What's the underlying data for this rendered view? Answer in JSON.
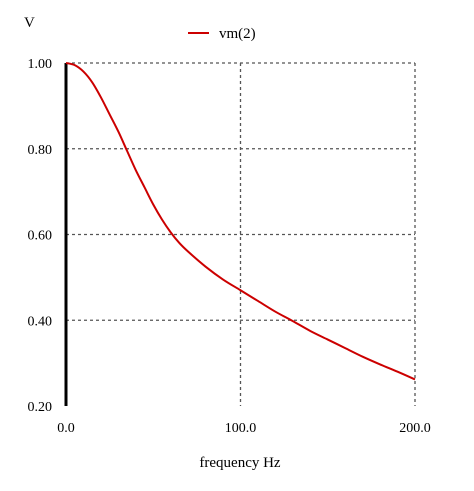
{
  "chart_data": {
    "type": "line",
    "ylabel": "V",
    "xlabel": "frequency Hz",
    "xlim": [
      0,
      200
    ],
    "ylim": [
      0.2,
      1.0
    ],
    "x_ticks": [
      0,
      100,
      200
    ],
    "x_tick_labels": [
      "0.0",
      "100.0",
      "200.0"
    ],
    "y_ticks": [
      0.2,
      0.4,
      0.6,
      0.8,
      1.0
    ],
    "y_tick_labels": [
      "0.20",
      "0.40",
      "0.60",
      "0.80",
      "1.00"
    ],
    "grid": true,
    "legend_position": "top-center",
    "series": [
      {
        "name": "vm(2)",
        "color": "#cc0000",
        "x": [
          0,
          5,
          10,
          15,
          20,
          25,
          30,
          35,
          40,
          45,
          50,
          55,
          60,
          65,
          70,
          80,
          90,
          100,
          110,
          120,
          130,
          140,
          150,
          160,
          170,
          180,
          190,
          200
        ],
        "y": [
          1.0,
          0.995,
          0.98,
          0.955,
          0.92,
          0.88,
          0.84,
          0.795,
          0.75,
          0.71,
          0.67,
          0.635,
          0.605,
          0.58,
          0.56,
          0.525,
          0.495,
          0.47,
          0.445,
          0.42,
          0.398,
          0.375,
          0.355,
          0.335,
          0.315,
          0.297,
          0.28,
          0.262
        ]
      }
    ]
  }
}
